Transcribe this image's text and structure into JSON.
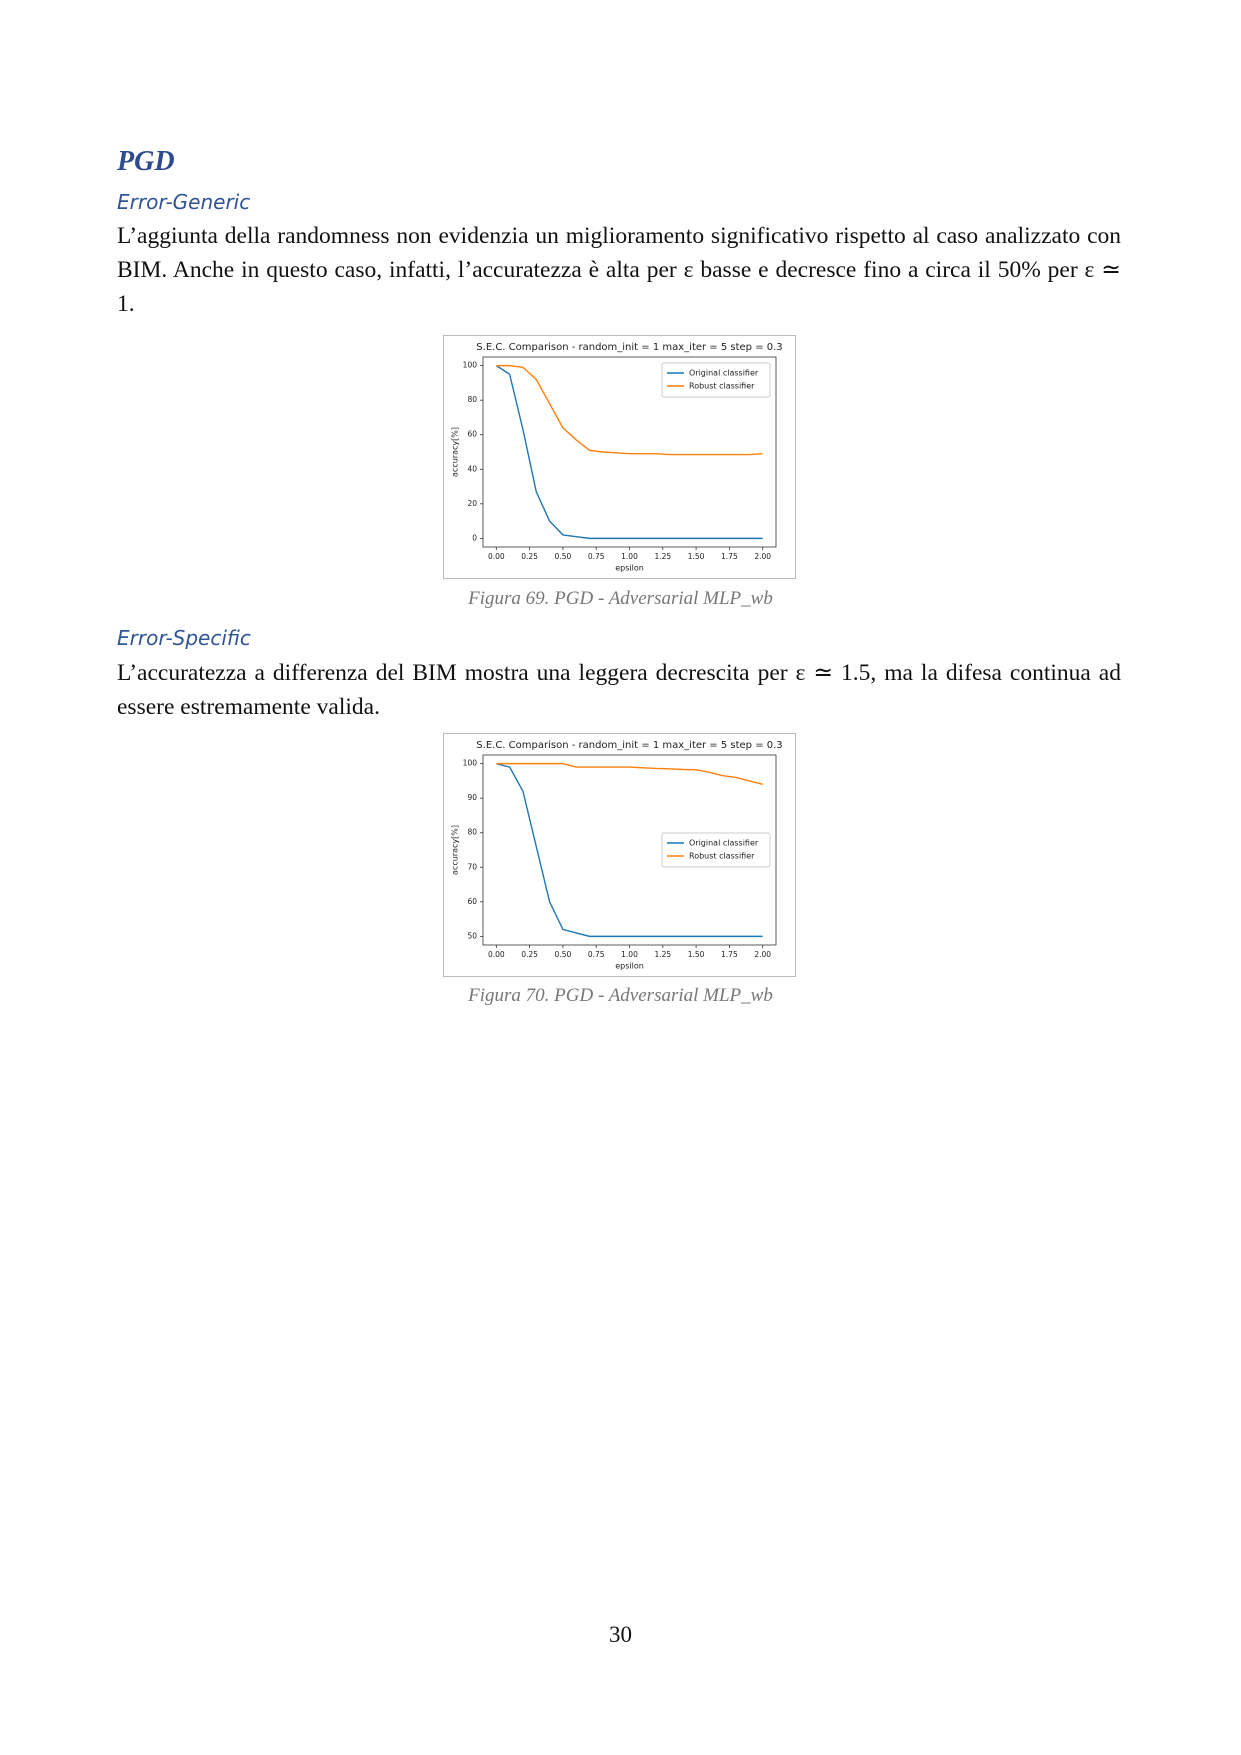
{
  "heading": "PGD",
  "sections": [
    {
      "title": "Error-Generic",
      "text": "L’aggiunta della randomness non evidenzia un miglioramento significativo rispetto al caso analizzato con BIM. Anche in questo caso, infatti, l’accuratezza è alta per ε basse e decresce fino a circa il 50% per ε ≃ 1."
    },
    {
      "title": "Error-Specific",
      "text": "L’accuratezza a differenza del BIM mostra una leggera decrescita per ε ≃ 1.5, ma la difesa continua ad essere estremamente valida."
    }
  ],
  "captions": [
    "Figura 69. PGD - Adversarial MLP_wb",
    "Figura 70. PGD - Adversarial MLP_wb"
  ],
  "page_number": "30",
  "chart_data": [
    {
      "type": "line",
      "title": "S.E.C. Comparison - random_init = 1 max_iter = 5 step = 0.3",
      "x_label": "epsilon",
      "y_label": "accuracy[%]",
      "x": [
        0,
        0.1,
        0.2,
        0.3,
        0.4,
        0.5,
        0.6,
        0.7,
        0.8,
        0.9,
        1.0,
        1.1,
        1.2,
        1.3,
        1.4,
        1.5,
        1.6,
        1.7,
        1.8,
        1.9,
        2.0
      ],
      "series": [
        {
          "name": "Original classifier",
          "color": "#1f77b4",
          "values": [
            100,
            95,
            63,
            27,
            10,
            2,
            1,
            0,
            0,
            0,
            0,
            0,
            0,
            0,
            0,
            0,
            0,
            0,
            0,
            0,
            0
          ]
        },
        {
          "name": "Robust classifier",
          "color": "#ff7f0e",
          "values": [
            100,
            100,
            99,
            92,
            78,
            64,
            57,
            51,
            50,
            49.5,
            49,
            49,
            49,
            48.5,
            48.5,
            48.5,
            48.5,
            48.5,
            48.5,
            48.5,
            49
          ]
        }
      ],
      "xlim": [
        -0.1,
        2.1
      ],
      "ylim": [
        -5,
        105
      ],
      "xticks": [
        {
          "value": 0,
          "label": "0.00"
        },
        {
          "value": 0.25,
          "label": "0.25"
        },
        {
          "value": 0.5,
          "label": "0.50"
        },
        {
          "value": 0.75,
          "label": "0.75"
        },
        {
          "value": 1,
          "label": "1.00"
        },
        {
          "value": 1.25,
          "label": "1.25"
        },
        {
          "value": 1.5,
          "label": "1.50"
        },
        {
          "value": 1.75,
          "label": "1.75"
        },
        {
          "value": 2,
          "label": "2.00"
        }
      ],
      "yticks": [
        0,
        20,
        40,
        60,
        80,
        100
      ],
      "legend": "upper right"
    },
    {
      "type": "line",
      "title": "S.E.C. Comparison - random_init = 1 max_iter = 5 step = 0.3",
      "x_label": "epsilon",
      "y_label": "accuracy[%]",
      "x": [
        0,
        0.1,
        0.2,
        0.3,
        0.4,
        0.5,
        0.6,
        0.7,
        0.8,
        0.9,
        1.0,
        1.1,
        1.2,
        1.3,
        1.4,
        1.5,
        1.6,
        1.7,
        1.8,
        1.9,
        2.0
      ],
      "series": [
        {
          "name": "Original classifier",
          "color": "#1f77b4",
          "values": [
            100,
            99,
            92,
            76,
            60,
            52,
            51,
            50,
            50,
            50,
            50,
            50,
            50,
            50,
            50,
            50,
            50,
            50,
            50,
            50,
            50
          ]
        },
        {
          "name": "Robust classifier",
          "color": "#ff7f0e",
          "values": [
            100,
            100,
            100,
            100,
            100,
            100,
            99,
            99,
            99,
            99,
            99,
            98.8,
            98.6,
            98.5,
            98.3,
            98.2,
            97.5,
            96.5,
            96,
            95,
            94
          ]
        }
      ],
      "xlim": [
        -0.1,
        2.1
      ],
      "ylim": [
        47.5,
        102.5
      ],
      "xticks": [
        {
          "value": 0,
          "label": "0.00"
        },
        {
          "value": 0.25,
          "label": "0.25"
        },
        {
          "value": 0.5,
          "label": "0.50"
        },
        {
          "value": 0.75,
          "label": "0.75"
        },
        {
          "value": 1,
          "label": "1.00"
        },
        {
          "value": 1.25,
          "label": "1.25"
        },
        {
          "value": 1.5,
          "label": "1.50"
        },
        {
          "value": 1.75,
          "label": "1.75"
        },
        {
          "value": 2,
          "label": "2.00"
        }
      ],
      "yticks": [
        50,
        60,
        70,
        80,
        90,
        100
      ],
      "legend": "center right"
    }
  ]
}
